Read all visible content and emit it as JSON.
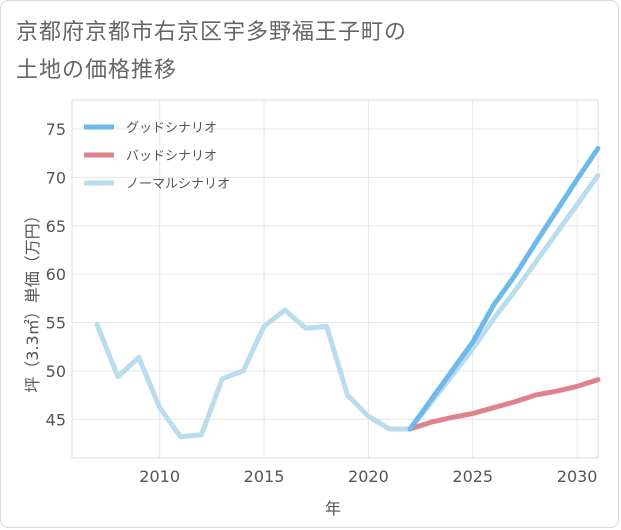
{
  "title_line1": "京都府京都市右京区宇多野福王子町の",
  "title_line2": "土地の価格推移",
  "chart_data": {
    "type": "line",
    "xlabel": "年",
    "ylabel": "坪（3.3㎡）単価（万円）",
    "xlim": [
      2005.8,
      2031
    ],
    "ylim": [
      41,
      78
    ],
    "x_ticks": [
      2010,
      2015,
      2020,
      2025,
      2030
    ],
    "y_ticks": [
      45,
      50,
      55,
      60,
      65,
      70,
      75
    ],
    "grid": true,
    "legend_position": "top-left",
    "series": [
      {
        "name": "グッドシナリオ",
        "color": "#6cb9ea",
        "x": [
          2022,
          2023,
          2024,
          2025,
          2026,
          2027,
          2028,
          2029,
          2030,
          2031
        ],
        "y": [
          44.0,
          47.0,
          50.0,
          53.0,
          56.8,
          59.8,
          63.2,
          66.5,
          69.8,
          73.0
        ]
      },
      {
        "name": "バッドシナリオ",
        "color": "#e0828e",
        "x": [
          2022,
          2023,
          2024,
          2025,
          2026,
          2027,
          2028,
          2029,
          2030,
          2031
        ],
        "y": [
          44.0,
          44.7,
          45.2,
          45.6,
          46.2,
          46.8,
          47.5,
          47.9,
          48.4,
          49.1
        ]
      },
      {
        "name": "ノーマルシナリオ",
        "color": "#b9ddee",
        "x": [
          2007,
          2008,
          2009,
          2010,
          2011,
          2012,
          2013,
          2014,
          2015,
          2016,
          2017,
          2018,
          2019,
          2020,
          2021,
          2022,
          2023,
          2024,
          2025,
          2026,
          2027,
          2028,
          2029,
          2030,
          2031
        ],
        "y": [
          54.8,
          49.4,
          51.4,
          46.2,
          43.2,
          43.4,
          49.2,
          50.0,
          54.6,
          56.3,
          54.4,
          54.6,
          47.5,
          45.3,
          44.0,
          44.0,
          46.7,
          49.5,
          52.3,
          55.4,
          58.2,
          61.2,
          64.2,
          67.2,
          70.2
        ]
      }
    ]
  }
}
